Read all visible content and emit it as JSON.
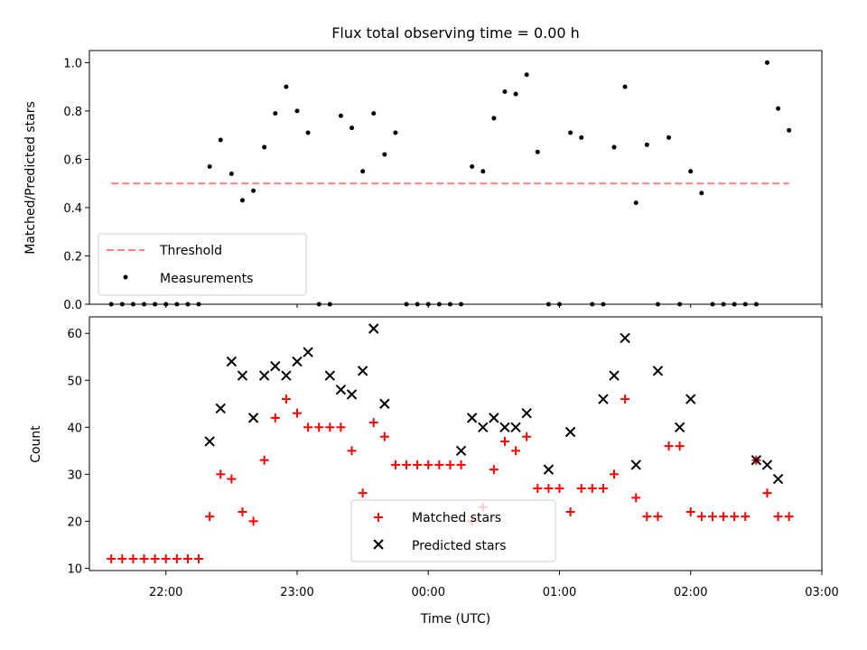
{
  "chart_data": [
    {
      "type": "scatter",
      "title": "Flux total observing time = 0.00 h",
      "xlabel": "",
      "ylabel": "Matched/Predicted stars",
      "xlim": [
        "21:25",
        "03:00"
      ],
      "ylim": [
        0,
        1.05
      ],
      "yticks": [
        "0.0",
        "0.2",
        "0.4",
        "0.6",
        "0.8",
        "1.0"
      ],
      "grid": false,
      "legend_position": "lower-left",
      "threshold": {
        "name": "Threshold",
        "y": 0.5,
        "x_start": "21:35",
        "x_end": "02:45",
        "color": "#ff7f7f"
      },
      "series": [
        {
          "name": "Measurements",
          "color": "#000000",
          "x": [
            "21:35",
            "21:40",
            "21:45",
            "21:50",
            "21:55",
            "22:00",
            "22:05",
            "22:10",
            "22:15",
            "22:20",
            "22:25",
            "22:30",
            "22:35",
            "22:40",
            "22:45",
            "22:50",
            "22:55",
            "23:00",
            "23:05",
            "23:10",
            "23:15",
            "23:20",
            "23:25",
            "23:30",
            "23:35",
            "23:40",
            "23:45",
            "23:50",
            "23:55",
            "00:00",
            "00:05",
            "00:10",
            "00:15",
            "00:20",
            "00:25",
            "00:30",
            "00:35",
            "00:40",
            "00:45",
            "00:50",
            "00:55",
            "01:00",
            "01:05",
            "01:10",
            "01:15",
            "01:20",
            "01:25",
            "01:30",
            "01:35",
            "01:40",
            "01:45",
            "01:50",
            "01:55",
            "02:00",
            "02:05",
            "02:10",
            "02:15",
            "02:20",
            "02:25",
            "02:30",
            "02:35",
            "02:40",
            "02:45"
          ],
          "y": [
            0,
            0,
            0,
            0,
            0,
            0,
            0,
            0,
            0,
            0.57,
            0.68,
            0.54,
            0.43,
            0.47,
            0.65,
            0.79,
            0.9,
            0.8,
            0.71,
            0,
            0,
            0.78,
            0.73,
            0.55,
            0.79,
            0.62,
            0.71,
            0,
            0,
            0,
            0,
            0,
            0,
            0.57,
            0.55,
            0.77,
            0.88,
            0.87,
            0.95,
            0.63,
            0,
            0,
            0.71,
            0.69,
            0,
            0,
            0.65,
            0.9,
            0.42,
            0.66,
            0,
            0.69,
            0,
            0.55,
            0.46,
            0,
            0,
            0,
            0,
            0,
            1.0,
            0.81,
            0.72
          ]
        }
      ]
    },
    {
      "type": "scatter",
      "title": "",
      "xlabel": "Time (UTC)",
      "ylabel": "Count",
      "xlim": [
        "21:25",
        "03:00"
      ],
      "ylim": [
        9.5,
        63.5
      ],
      "xticks": [
        "22:00",
        "23:00",
        "00:00",
        "01:00",
        "02:00",
        "03:00"
      ],
      "yticks": [
        "10",
        "20",
        "30",
        "40",
        "50",
        "60"
      ],
      "grid": false,
      "legend_position": "lower-center",
      "series": [
        {
          "name": "Matched stars",
          "color": "#ff0000",
          "marker": "plus",
          "x": [
            "21:35",
            "21:40",
            "21:45",
            "21:50",
            "21:55",
            "22:00",
            "22:05",
            "22:10",
            "22:15",
            "22:20",
            "22:25",
            "22:30",
            "22:35",
            "22:40",
            "22:45",
            "22:50",
            "22:55",
            "23:00",
            "23:05",
            "23:10",
            "23:15",
            "23:20",
            "23:25",
            "23:30",
            "23:35",
            "23:40",
            "23:45",
            "23:50",
            "23:55",
            "00:00",
            "00:05",
            "00:10",
            "00:15",
            "00:20",
            "00:25",
            "00:30",
            "00:35",
            "00:40",
            "00:45",
            "00:50",
            "00:55",
            "01:00",
            "01:05",
            "01:10",
            "01:15",
            "01:20",
            "01:25",
            "01:30",
            "01:35",
            "01:40",
            "01:45",
            "01:50",
            "01:55",
            "02:00",
            "02:05",
            "02:10",
            "02:15",
            "02:20",
            "02:25",
            "02:30",
            "02:35",
            "02:40",
            "02:45"
          ],
          "y": [
            12,
            12,
            12,
            12,
            12,
            12,
            12,
            12,
            12,
            21,
            30,
            29,
            22,
            20,
            33,
            42,
            46,
            43,
            40,
            40,
            40,
            40,
            35,
            26,
            41,
            38,
            32,
            32,
            32,
            32,
            32,
            32,
            32,
            20,
            23,
            31,
            37,
            35,
            38,
            27,
            27,
            27,
            22,
            27,
            27,
            27,
            30,
            46,
            25,
            21,
            21,
            36,
            36,
            22,
            21,
            21,
            21,
            21,
            21,
            33,
            26,
            21,
            21
          ]
        },
        {
          "name": "Predicted stars",
          "color": "#000000",
          "marker": "x",
          "x": [
            "22:20",
            "22:25",
            "22:30",
            "22:35",
            "22:40",
            "22:45",
            "22:50",
            "22:55",
            "23:00",
            "23:05",
            "23:15",
            "23:20",
            "23:25",
            "23:30",
            "23:35",
            "23:40",
            "00:15",
            "00:20",
            "00:25",
            "00:30",
            "00:35",
            "00:40",
            "00:45",
            "00:55",
            "01:05",
            "01:20",
            "01:25",
            "01:30",
            "01:35",
            "01:45",
            "01:55",
            "02:00",
            "02:30",
            "02:35",
            "02:40"
          ],
          "y": [
            37,
            44,
            54,
            51,
            42,
            51,
            53,
            51,
            54,
            56,
            51,
            48,
            47,
            52,
            61,
            45,
            35,
            42,
            40,
            42,
            40,
            40,
            43,
            31,
            39,
            46,
            51,
            59,
            32,
            52,
            40,
            46,
            33,
            32,
            29
          ]
        }
      ]
    }
  ]
}
